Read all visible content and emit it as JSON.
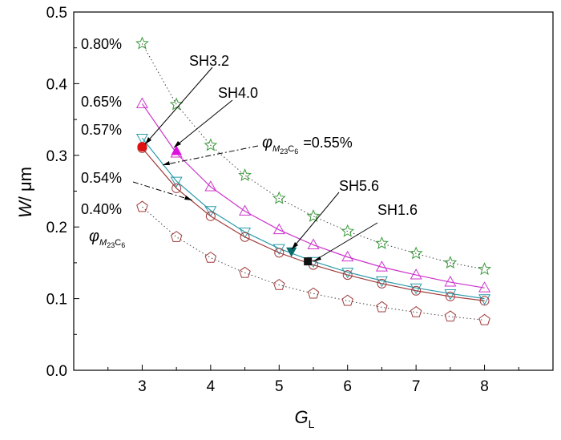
{
  "chart_data": {
    "type": "line",
    "xlabel": "G",
    "xlabel_sub": "L",
    "ylabel_main": "W",
    "ylabel_unit": "/ μm",
    "xlim": [
      2,
      9
    ],
    "ylim": [
      0,
      0.5
    ],
    "xticks": [
      3,
      4,
      5,
      6,
      7,
      8
    ],
    "yticks": [
      0.0,
      0.1,
      0.2,
      0.3,
      0.4,
      0.5
    ],
    "xtick_labels": [
      "3",
      "4",
      "5",
      "6",
      "7",
      "8"
    ],
    "ytick_labels": [
      "0.0",
      "0.1",
      "0.2",
      "0.3",
      "0.4",
      "0.5"
    ],
    "series": [
      {
        "name": "0.80%",
        "marker": "star",
        "color": "#3a9a3a",
        "line": "dotted",
        "x": [
          3,
          3.5,
          4,
          4.5,
          5,
          5.5,
          6,
          6.5,
          7,
          7.5,
          8
        ],
        "y": [
          0.456,
          0.371,
          0.314,
          0.272,
          0.24,
          0.215,
          0.194,
          0.177,
          0.163,
          0.15,
          0.141
        ]
      },
      {
        "name": "0.65%",
        "marker": "triangle-up",
        "color": "#cc33cc",
        "line": "solid",
        "x": [
          3,
          3.5,
          4,
          4.5,
          5,
          5.5,
          6,
          6.5,
          7,
          7.5,
          8
        ],
        "y": [
          0.372,
          0.303,
          0.256,
          0.222,
          0.196,
          0.175,
          0.158,
          0.144,
          0.133,
          0.123,
          0.115
        ]
      },
      {
        "name": "0.57%",
        "marker": "triangle-down",
        "color": "#2a9aaa",
        "line": "solid",
        "x": [
          3,
          3.5,
          4,
          4.5,
          5,
          5.5,
          6,
          6.5,
          7,
          7.5,
          8
        ],
        "y": [
          0.324,
          0.264,
          0.223,
          0.193,
          0.17,
          0.152,
          0.137,
          0.125,
          0.115,
          0.107,
          0.1
        ]
      },
      {
        "name": "0.54%",
        "marker": "circle",
        "color": "#a03a3a",
        "line": "solid",
        "x": [
          3,
          3.5,
          4,
          4.5,
          5,
          5.5,
          6,
          6.5,
          7,
          7.5,
          8
        ],
        "y": [
          0.31,
          0.254,
          0.215,
          0.186,
          0.164,
          0.147,
          0.133,
          0.121,
          0.111,
          0.103,
          0.097
        ]
      },
      {
        "name": "0.40%",
        "marker": "pentagon",
        "color": "#a03a3a",
        "line": "dotted",
        "x": [
          3,
          3.5,
          4,
          4.5,
          5,
          5.5,
          6,
          6.5,
          7,
          7.5,
          8
        ],
        "y": [
          0.228,
          0.186,
          0.157,
          0.136,
          0.119,
          0.107,
          0.097,
          0.088,
          0.081,
          0.075,
          0.07
        ]
      }
    ],
    "highlight_points": [
      {
        "name": "SH3.2",
        "x": 3.0,
        "y": 0.312,
        "marker": "circle-filled",
        "color": "#dd1111"
      },
      {
        "name": "SH4.0",
        "x": 3.5,
        "y": 0.306,
        "marker": "triangle-filled",
        "color": "#dd11dd"
      },
      {
        "name": "SH5.6",
        "x": 5.18,
        "y": 0.166,
        "marker": "triangle-down-filled",
        "color": "#0a6a6a"
      },
      {
        "name": "SH1.6",
        "x": 5.42,
        "y": 0.152,
        "marker": "square-filled",
        "color": "#111111"
      }
    ],
    "phi_symbol": "φ",
    "phi_sub_m": "M",
    "phi_sub_num1": "23",
    "phi_sub_c": "C",
    "phi_sub_num2": "6",
    "phi_annotation_value": "=0.55%"
  },
  "labels": {
    "p080": "0.80%",
    "p065": "0.65%",
    "p057": "0.57%",
    "p054": "0.54%",
    "p040": "0.40%",
    "sh32": "SH3.2",
    "sh40": "SH4.0",
    "sh56": "SH5.6",
    "sh16": "SH1.6"
  }
}
